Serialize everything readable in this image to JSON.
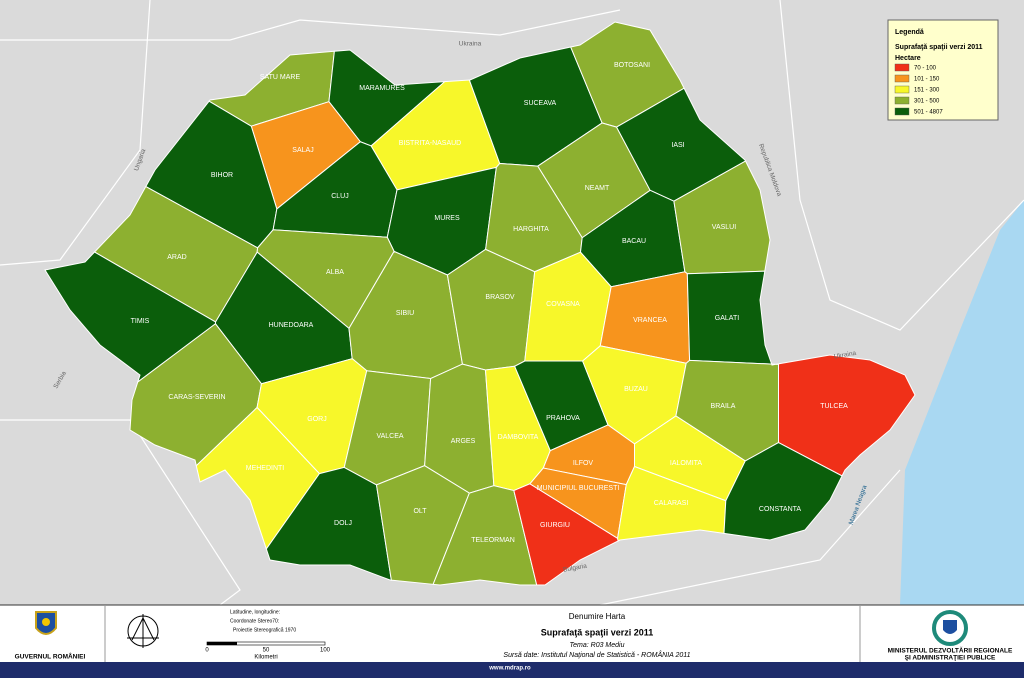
{
  "map": {
    "neighbors": [
      "Ukraina",
      "Ungaria",
      "Republica Moldova",
      "Serbia",
      "Bulgaria",
      "Marea Neagra",
      "Ukraina"
    ],
    "counties": [
      {
        "name": "SATU MARE",
        "color": "#8db030"
      },
      {
        "name": "MARAMURES",
        "color": "#0b5e0b"
      },
      {
        "name": "BISTRITA-NASAUD",
        "color": "#f7f72a"
      },
      {
        "name": "SUCEAVA",
        "color": "#0b5e0b"
      },
      {
        "name": "BOTOSANI",
        "color": "#8db030"
      },
      {
        "name": "SALAJ",
        "color": "#f7941d"
      },
      {
        "name": "BIHOR",
        "color": "#0b5e0b"
      },
      {
        "name": "CLUJ",
        "color": "#0b5e0b"
      },
      {
        "name": "MURES",
        "color": "#0b5e0b"
      },
      {
        "name": "NEAMT",
        "color": "#8db030"
      },
      {
        "name": "IASI",
        "color": "#0b5e0b"
      },
      {
        "name": "HARGHITA",
        "color": "#8db030"
      },
      {
        "name": "BACAU",
        "color": "#0b5e0b"
      },
      {
        "name": "VASLUI",
        "color": "#8db030"
      },
      {
        "name": "ARAD",
        "color": "#8db030"
      },
      {
        "name": "ALBA",
        "color": "#8db030"
      },
      {
        "name": "TIMIS",
        "color": "#0b5e0b"
      },
      {
        "name": "HUNEDOARA",
        "color": "#0b5e0b"
      },
      {
        "name": "SIBIU",
        "color": "#8db030"
      },
      {
        "name": "BRASOV",
        "color": "#8db030"
      },
      {
        "name": "COVASNA",
        "color": "#f7f72a"
      },
      {
        "name": "VRANCEA",
        "color": "#f7941d"
      },
      {
        "name": "GALATI",
        "color": "#0b5e0b"
      },
      {
        "name": "CARAS-SEVERIN",
        "color": "#8db030"
      },
      {
        "name": "GORJ",
        "color": "#f7f72a"
      },
      {
        "name": "VALCEA",
        "color": "#8db030"
      },
      {
        "name": "ARGES",
        "color": "#8db030"
      },
      {
        "name": "DAMBOVITA",
        "color": "#f7f72a"
      },
      {
        "name": "PRAHOVA",
        "color": "#0b5e0b"
      },
      {
        "name": "BUZAU",
        "color": "#f7f72a"
      },
      {
        "name": "BRAILA",
        "color": "#8db030"
      },
      {
        "name": "TULCEA",
        "color": "#f03018"
      },
      {
        "name": "MEHEDINTI",
        "color": "#f7f72a"
      },
      {
        "name": "DOLJ",
        "color": "#0b5e0b"
      },
      {
        "name": "OLT",
        "color": "#8db030"
      },
      {
        "name": "TELEORMAN",
        "color": "#8db030"
      },
      {
        "name": "GIURGIU",
        "color": "#f03018"
      },
      {
        "name": "ILFOV",
        "color": "#f7941d"
      },
      {
        "name": "MUNICIPIUL BUCURESTI",
        "color": "#f7941d"
      },
      {
        "name": "IALOMITA",
        "color": "#f7f72a"
      },
      {
        "name": "CALARASI",
        "color": "#f7f72a"
      },
      {
        "name": "CONSTANTA",
        "color": "#0b5e0b"
      }
    ]
  },
  "legend": {
    "title": "Legendă",
    "subtitle": "Suprafaţă spaţii verzi 2011",
    "unit": "Hectare",
    "items": [
      {
        "label": "70 - 100",
        "color": "#f03018"
      },
      {
        "label": "101 - 150",
        "color": "#f7941d"
      },
      {
        "label": "151 - 300",
        "color": "#f7f72a"
      },
      {
        "label": "301 - 500",
        "color": "#8db030"
      },
      {
        "label": "501 - 4807",
        "color": "#0b5e0b"
      }
    ]
  },
  "footer": {
    "heading": "Denumire Harta",
    "title": "Suprafaţă spaţii verzi 2011",
    "theme": "Tema: R03 Mediu",
    "source": "Sursă date:  Institutul Naţional de Statistică - ROMÂNIA 2011",
    "coords": [
      "Latitudine, longitudine:",
      "Coordonate Stereo70:",
      "Proiectie Stereografică 1970"
    ],
    "scale": [
      "0",
      "50",
      "100",
      "Kilometri"
    ],
    "left_logo": "GUVERNUL ROMÂNIEI",
    "right_logo": [
      "MINISTERUL DEZVOLTĂRII REGIONALE",
      "ŞI ADMINISTRAŢIEI PUBLICE"
    ],
    "url": "www.mdrap.ro"
  }
}
